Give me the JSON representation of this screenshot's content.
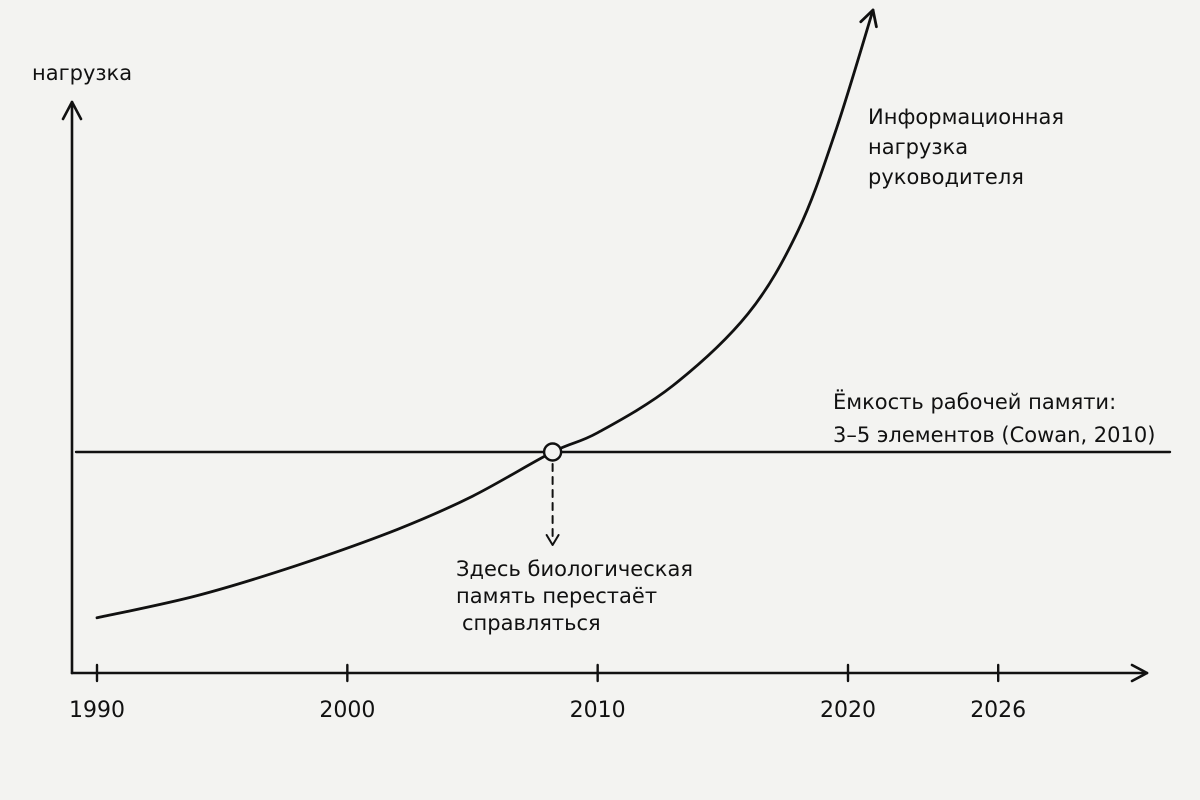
{
  "chart_data": {
    "type": "line",
    "ylabel": "нагрузка",
    "xlabel": "",
    "x_ticks": [
      1990,
      2000,
      2010,
      2020,
      2026
    ],
    "xlim": [
      1989,
      2028
    ],
    "ylim": [
      0,
      100
    ],
    "grid": false,
    "series": [
      {
        "name": "Информационная нагрузка руководителя",
        "label_lines": [
          "Информационная",
          "нагрузка",
          "руководителя"
        ],
        "x": [
          1990,
          1994,
          1998,
          2002,
          2005,
          2008.2,
          2010,
          2013,
          2016,
          2018,
          2019.5,
          2021
        ],
        "y": [
          10,
          14,
          19.5,
          26,
          32,
          40,
          43.5,
          52,
          65,
          80,
          98,
          120
        ]
      }
    ],
    "reference_line": {
      "name": "Ёмкость рабочей памяти: 3–5 элементов (Cowan, 2010)",
      "label_lines": [
        "Ёмкость рабочей памяти:",
        "3–5 элементов (Cowan, 2010)"
      ],
      "y": 40
    },
    "annotation": {
      "x": 2008.2,
      "y": 40,
      "lines": [
        "Здесь биологическая",
        "память перестаёт",
        "справляться"
      ]
    }
  }
}
